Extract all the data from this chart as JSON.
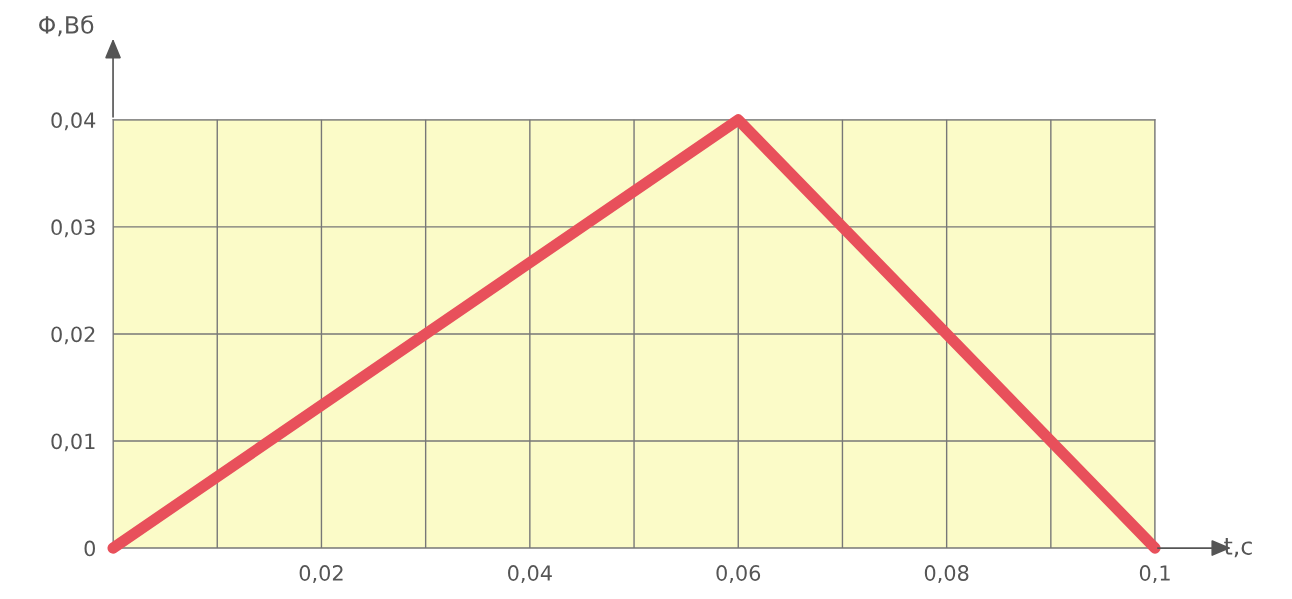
{
  "chart_data": {
    "type": "line",
    "xlabel": "t,c",
    "ylabel": "Φ,Вб",
    "x": [
      0,
      0.06,
      0.1
    ],
    "series": [
      {
        "color": "#e8505b",
        "values": [
          0,
          0.04,
          0
        ]
      }
    ],
    "xlim": [
      0,
      0.1
    ],
    "ylim": [
      0,
      0.04
    ],
    "xticks": [
      {
        "value": 0,
        "label": null
      },
      {
        "value": 0.01,
        "label": null
      },
      {
        "value": 0.02,
        "label": "0,02"
      },
      {
        "value": 0.03,
        "label": null
      },
      {
        "value": 0.04,
        "label": "0,04"
      },
      {
        "value": 0.05,
        "label": null
      },
      {
        "value": 0.06,
        "label": "0,06"
      },
      {
        "value": 0.07,
        "label": null
      },
      {
        "value": 0.08,
        "label": "0,08"
      },
      {
        "value": 0.09,
        "label": null
      },
      {
        "value": 0.1,
        "label": "0,1"
      }
    ],
    "yticks": [
      {
        "value": 0,
        "label": "0"
      },
      {
        "value": 0.01,
        "label": "0,01"
      },
      {
        "value": 0.02,
        "label": "0,02"
      },
      {
        "value": 0.03,
        "label": "0,03"
      },
      {
        "value": 0.04,
        "label": "0,04"
      }
    ],
    "grid": true,
    "line_style": "solid"
  }
}
